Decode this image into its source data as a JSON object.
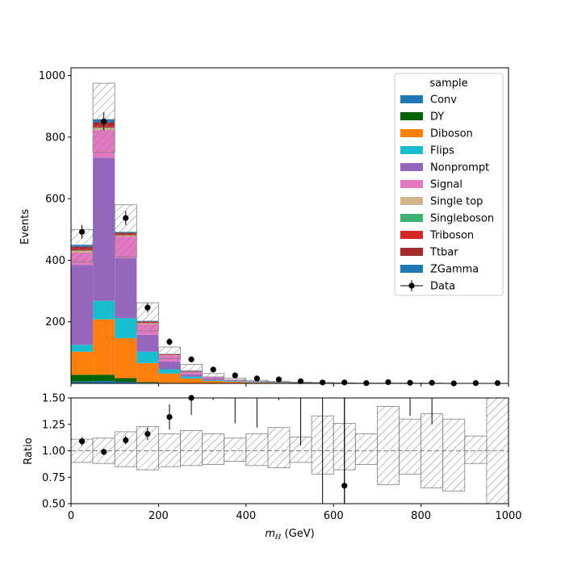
{
  "chart_data": [
    {
      "type": "stacked-histogram",
      "ylabel": "Events",
      "xlim": [
        0,
        1000
      ],
      "ylim": [
        0,
        1025
      ],
      "yticks": [
        200,
        400,
        600,
        800,
        1000
      ],
      "ytick_labels": [
        "200",
        "400",
        "600",
        "800",
        "1000"
      ],
      "bin_edges": [
        0,
        50,
        100,
        150,
        200,
        250,
        300,
        350,
        400,
        450,
        500,
        550,
        600,
        650,
        700,
        750,
        800,
        850,
        900,
        950,
        1000
      ],
      "legend_title": "sample",
      "legend_position": "top-right",
      "series": [
        {
          "name": "Conv",
          "color": "#1f77b4",
          "values": [
            6,
            8,
            5,
            2,
            1,
            0,
            0,
            0,
            0,
            0,
            0,
            0,
            0,
            0,
            0,
            0,
            0,
            0,
            0,
            0
          ]
        },
        {
          "name": "DY",
          "color": "#006400",
          "values": [
            22,
            20,
            12,
            2,
            1,
            0,
            0,
            0,
            0,
            0,
            0,
            0,
            0,
            0,
            0,
            0,
            0,
            0,
            0,
            0
          ]
        },
        {
          "name": "Diboson",
          "color": "#ff7f0e",
          "values": [
            75,
            180,
            130,
            62,
            30,
            16,
            8,
            5,
            3,
            2,
            1,
            1,
            1,
            0,
            0,
            0,
            0,
            0,
            0,
            0
          ]
        },
        {
          "name": "Flips",
          "color": "#17becf",
          "values": [
            22,
            60,
            65,
            37,
            14,
            6,
            3,
            2,
            1,
            1,
            0,
            0,
            0,
            0,
            0,
            0,
            0,
            0,
            0,
            0
          ]
        },
        {
          "name": "Nonprompt",
          "color": "#9467bd",
          "values": [
            260,
            465,
            195,
            55,
            25,
            7,
            5,
            2,
            1,
            1,
            0,
            0,
            0,
            0,
            0,
            0,
            0,
            0,
            0,
            0
          ]
        },
        {
          "name": "Signal",
          "color": "#e377c2",
          "values": [
            40,
            90,
            70,
            35,
            20,
            10,
            5,
            3,
            2,
            1,
            1,
            1,
            0,
            0,
            0,
            0,
            0,
            0,
            0,
            0
          ]
        },
        {
          "name": "Single top",
          "color": "#d2b48c",
          "values": [
            5,
            6,
            3,
            2,
            1,
            0,
            0,
            0,
            0,
            0,
            0,
            0,
            0,
            0,
            0,
            0,
            0,
            0,
            0,
            0
          ]
        },
        {
          "name": "Singleboson",
          "color": "#3cb371",
          "values": [
            2,
            2,
            1,
            1,
            0,
            0,
            0,
            0,
            0,
            0,
            0,
            0,
            0,
            0,
            0,
            0,
            0,
            0,
            0,
            0
          ]
        },
        {
          "name": "Triboson",
          "color": "#d62728",
          "values": [
            4,
            5,
            3,
            2,
            1,
            1,
            0,
            0,
            0,
            0,
            0,
            0,
            0,
            0,
            0,
            0,
            0,
            0,
            0,
            0
          ]
        },
        {
          "name": "Ttbar",
          "color": "#a52a2a",
          "values": [
            8,
            12,
            5,
            3,
            2,
            1,
            0,
            0,
            0,
            0,
            0,
            0,
            0,
            0,
            0,
            0,
            0,
            0,
            0,
            0
          ]
        },
        {
          "name": "ZGamma",
          "color": "#1f77b4",
          "values": [
            6,
            10,
            3,
            2,
            1,
            1,
            0,
            0,
            0,
            0,
            0,
            0,
            0,
            0,
            0,
            0,
            0,
            0,
            0,
            0
          ]
        }
      ],
      "uncertainty_band": {
        "lo": [
          395,
          750,
          410,
          170,
          80,
          37,
          21,
          11,
          6,
          4,
          2,
          1,
          1,
          0,
          0,
          0,
          0,
          0,
          0,
          0
        ],
        "hi": [
          500,
          975,
          580,
          262,
          118,
          62,
          32,
          17,
          10,
          7,
          4,
          3,
          2,
          1,
          1,
          1,
          1,
          0,
          0,
          0
        ]
      },
      "data": {
        "name": "Data",
        "color": "#000000",
        "x": [
          25,
          75,
          125,
          175,
          225,
          275,
          325,
          375,
          425,
          475,
          525,
          575,
          625,
          675,
          725,
          775,
          825,
          875,
          925,
          975
        ],
        "y": [
          492,
          851,
          537,
          246,
          135,
          78,
          45,
          26,
          16,
          13,
          7,
          3,
          3,
          1,
          4,
          2,
          2,
          0,
          1,
          1
        ],
        "yerr": [
          22,
          29,
          23,
          16,
          12,
          9,
          7,
          5,
          4,
          4,
          3,
          2,
          2,
          1,
          2,
          1,
          1,
          0,
          1,
          1
        ]
      }
    },
    {
      "type": "ratio",
      "xlabel_main": "m",
      "xlabel_sub": "ℓℓ",
      "xlabel_unit": " (GeV)",
      "ylabel": "Ratio",
      "xlim": [
        0,
        1000
      ],
      "ylim": [
        0.5,
        1.5
      ],
      "xticks": [
        0,
        200,
        400,
        600,
        800,
        1000
      ],
      "xtick_labels": [
        "0",
        "200",
        "400",
        "600",
        "800",
        "1000"
      ],
      "yticks": [
        0.5,
        0.75,
        1.0,
        1.25,
        1.5
      ],
      "ytick_labels": [
        "0.50",
        "0.75",
        "1.00",
        "1.25",
        "1.50"
      ],
      "band_lo": [
        0.89,
        0.88,
        0.85,
        0.82,
        0.85,
        0.86,
        0.87,
        0.9,
        0.86,
        0.84,
        0.89,
        0.78,
        0.82,
        0.87,
        0.68,
        0.78,
        0.65,
        0.62,
        0.88,
        0.5
      ],
      "band_hi": [
        1.11,
        1.12,
        1.18,
        1.23,
        1.16,
        1.19,
        1.16,
        1.12,
        1.16,
        1.22,
        1.13,
        1.33,
        1.26,
        1.16,
        1.42,
        1.3,
        1.35,
        1.3,
        1.14,
        1.5
      ],
      "points": {
        "x": [
          25,
          75,
          125,
          175,
          225,
          275,
          625
        ],
        "y": [
          1.09,
          0.99,
          1.1,
          1.16,
          1.32,
          1.5,
          0.67
        ],
        "yerr": [
          0.04,
          0.03,
          0.04,
          0.06,
          0.12,
          0.16,
          1.0
        ]
      },
      "offscale_errorbars": [
        {
          "x": 325,
          "lo": 1.48
        },
        {
          "x": 375,
          "lo": 1.26
        },
        {
          "x": 425,
          "lo": 1.22
        },
        {
          "x": 475,
          "lo": 1.48
        },
        {
          "x": 525,
          "lo": 1.05
        },
        {
          "x": 575,
          "lo": 0.5
        },
        {
          "x": 625,
          "lo": 0.5
        },
        {
          "x": 775,
          "lo": 1.33
        },
        {
          "x": 825,
          "lo": 1.25
        }
      ],
      "reference_line": 1.0
    }
  ]
}
